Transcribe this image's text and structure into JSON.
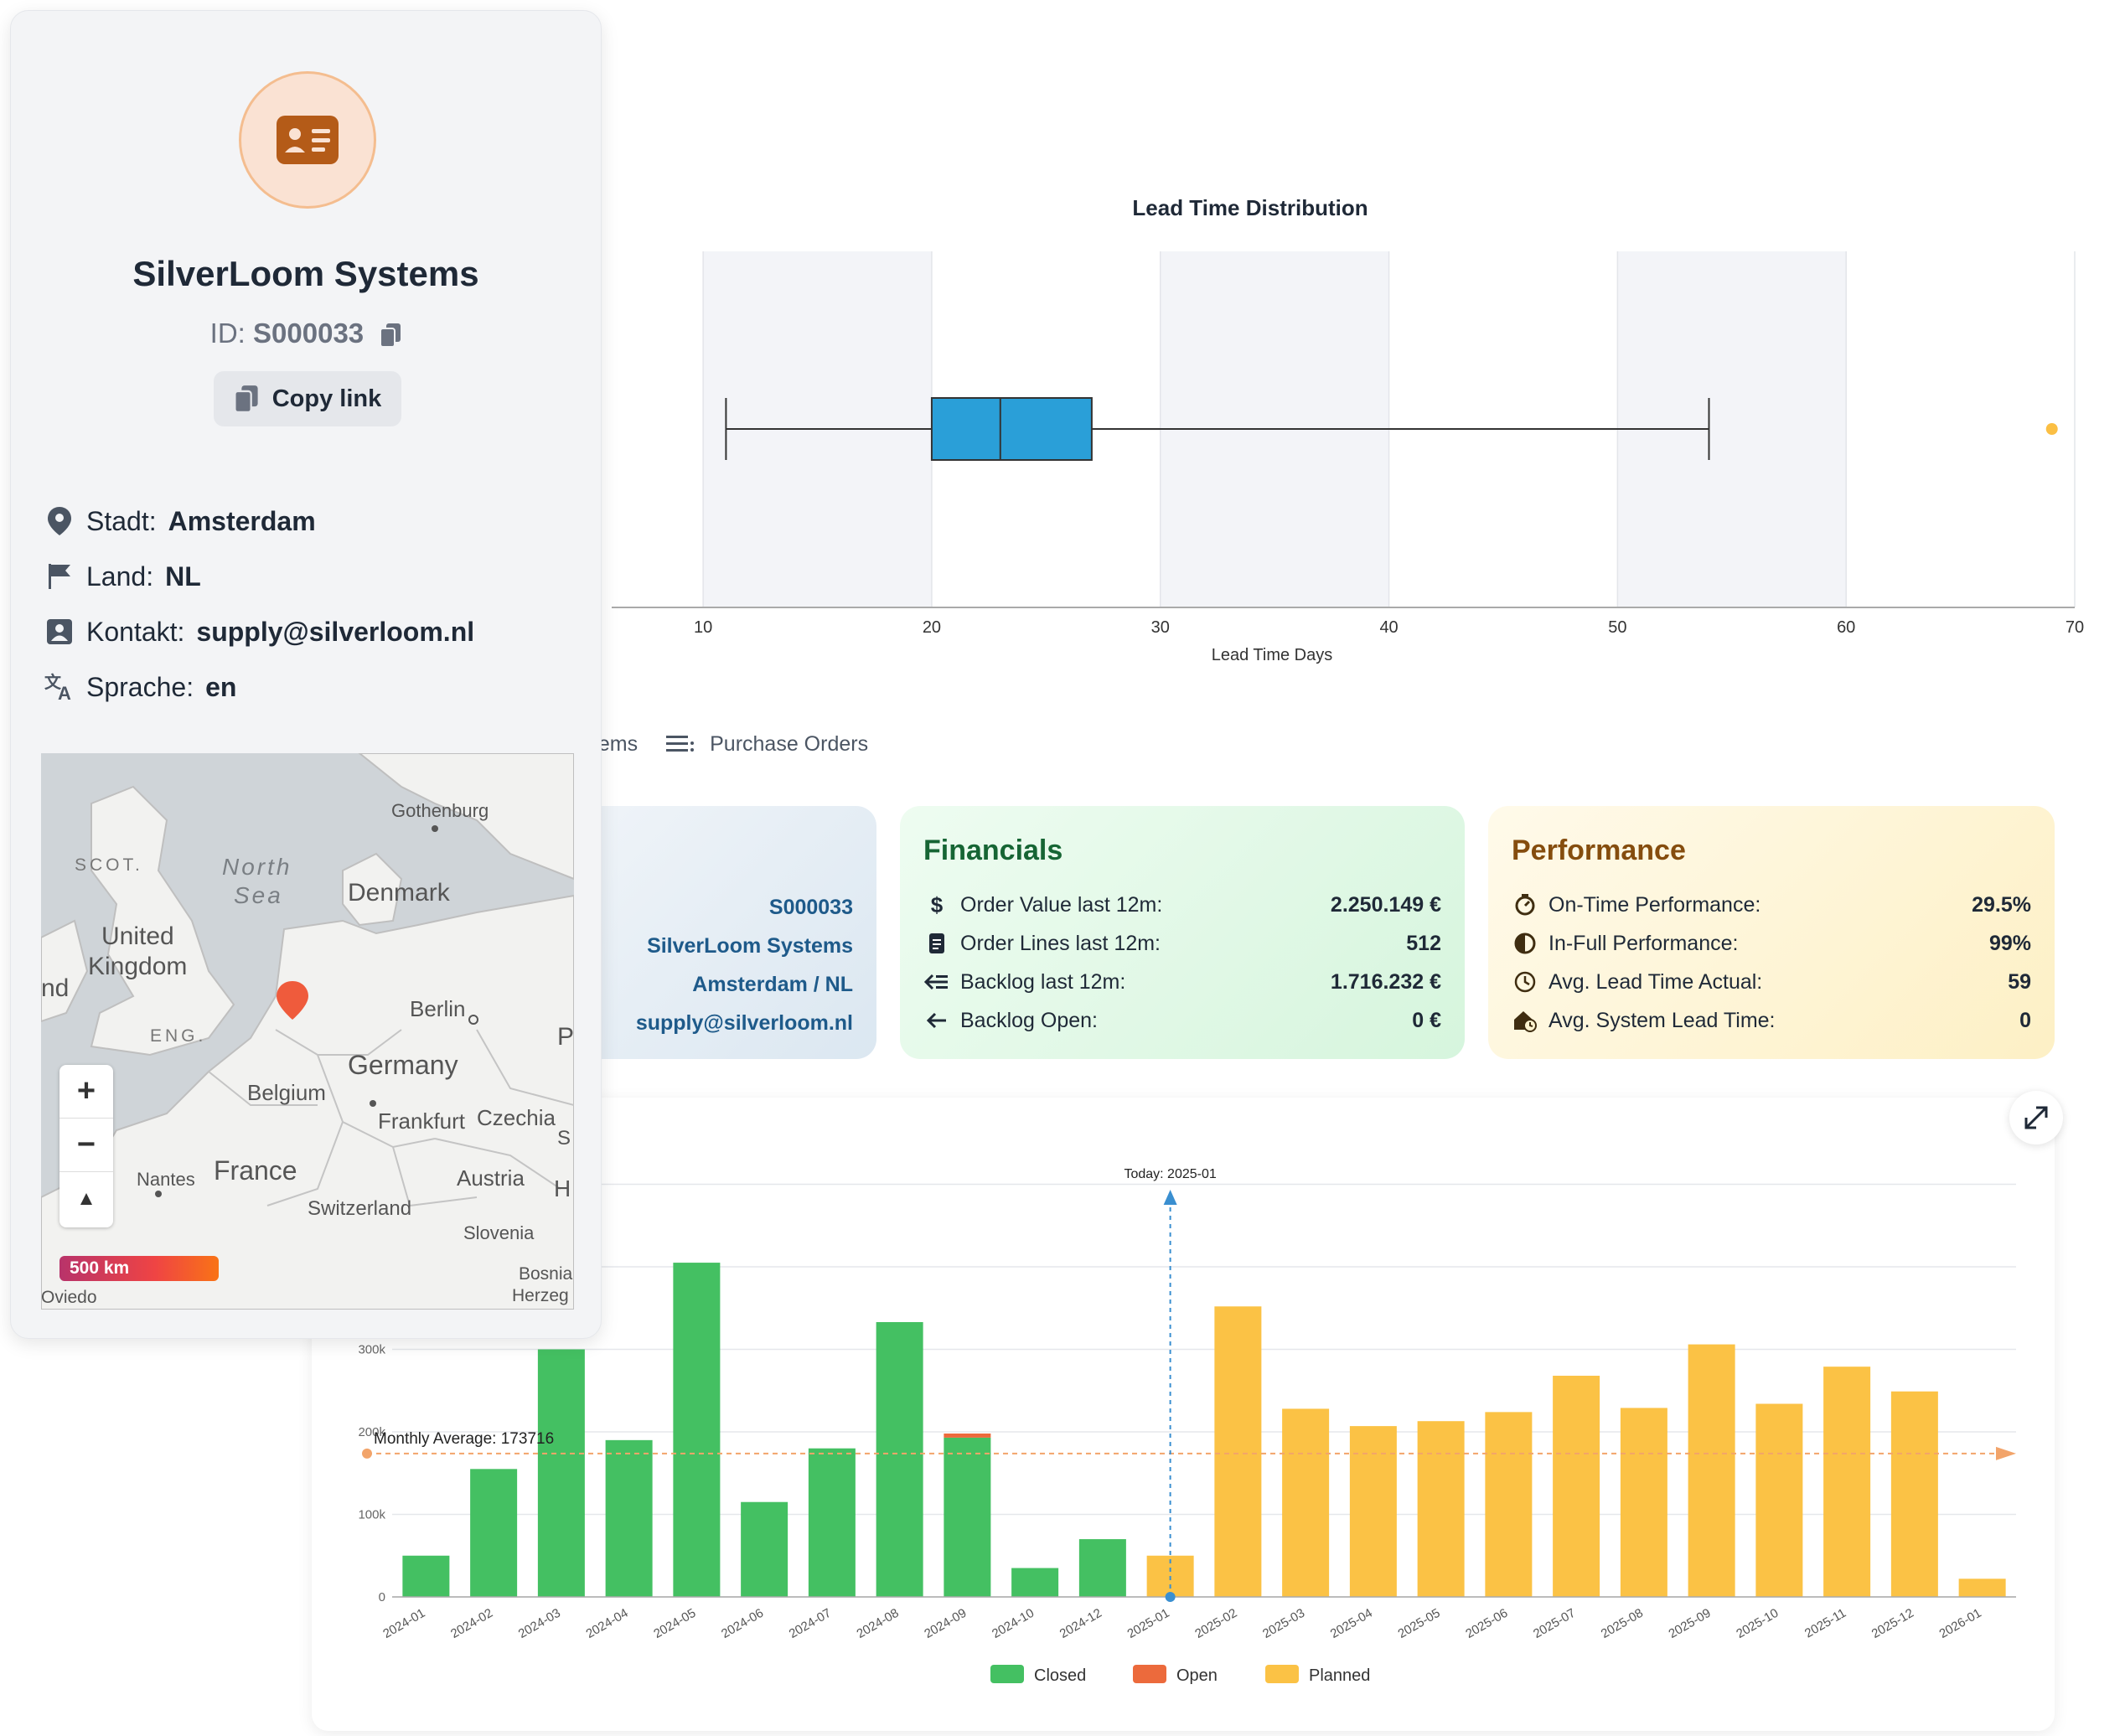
{
  "supplier": {
    "name": "SilverLoom Systems",
    "id_label": "ID:",
    "id_value": "S000033",
    "copy_link_label": "Copy link",
    "attributes": [
      {
        "label": "Stadt:",
        "value": "Amsterdam",
        "icon": "location-pin-icon"
      },
      {
        "label": "Land:",
        "value": "NL",
        "icon": "flag-icon"
      },
      {
        "label": "Kontakt:",
        "value": "supply@silverloom.nl",
        "icon": "contact-card-icon"
      },
      {
        "label": "Sprache:",
        "value": "en",
        "icon": "translate-icon"
      }
    ]
  },
  "map": {
    "labels": {
      "gothenburg": "Gothenburg",
      "scot": "SCOT.",
      "north_sea_1": "North",
      "north_sea_2": "Sea",
      "denmark": "Denmark",
      "united": "United",
      "kingdom": "Kingdom",
      "nd": "nd",
      "eng": "ENG.",
      "berlin": "Berlin",
      "p": "P",
      "germany": "Germany",
      "belgium": "Belgium",
      "frankfurt": "Frankfurt",
      "czechia": "Czechia",
      "nantes": "Nantes",
      "france": "France",
      "austria": "Austria",
      "h": "H",
      "switzerland": "Switzerland",
      "slovenia": "Slovenia",
      "bosnia": "Bosnia",
      "herzeg": "Herzeg",
      "oviedo": "Oviedo",
      "s": "S"
    },
    "zoom_in": "+",
    "zoom_out": "−",
    "compass": "▲",
    "scale": "500 km"
  },
  "lead_time_chart": {
    "title": "Lead Time Distribution",
    "xlabel": "Lead Time Days"
  },
  "tabs": [
    {
      "label": "Items",
      "icon": "list-icon"
    },
    {
      "label": "Purchase Orders",
      "icon": "list-icon"
    }
  ],
  "info_card": {
    "values": [
      "S000033",
      "SilverLoom Systems",
      "Amsterdam / NL",
      "supply@silverloom.nl"
    ]
  },
  "financials": {
    "title": "Financials",
    "rows": [
      {
        "label": "Order Value last 12m:",
        "value": "2.250.149 €",
        "icon": "dollar-icon"
      },
      {
        "label": "Order Lines last 12m:",
        "value": "512",
        "icon": "document-icon"
      },
      {
        "label": "Backlog last 12m:",
        "value": "1.716.232 €",
        "icon": "arrow-left-lines-icon"
      },
      {
        "label": "Backlog Open:",
        "value": "0 €",
        "icon": "arrow-left-icon"
      }
    ]
  },
  "performance": {
    "title": "Performance",
    "rows": [
      {
        "label": "On-Time Performance:",
        "value": "29.5%",
        "icon": "timer-icon"
      },
      {
        "label": "In-Full Performance:",
        "value": "99%",
        "icon": "half-circle-icon"
      },
      {
        "label": "Avg. Lead Time Actual:",
        "value": "59",
        "icon": "clock-icon"
      },
      {
        "label": "Avg. System Lead Time:",
        "value": "0",
        "icon": "house-clock-icon"
      }
    ]
  },
  "colors": {
    "box": "#2a9fd8",
    "outlier": "#fbbf44",
    "closed": "#44c062",
    "open": "#ec6a3c",
    "planned": "#fbc245",
    "today_line": "#3a8fd0",
    "avg_line": "#f2a46a"
  },
  "chart_data": [
    {
      "type": "box",
      "title": "Lead Time Distribution",
      "xlabel": "Lead Time Days",
      "xlim": [
        6,
        70
      ],
      "xticks": [
        10,
        20,
        30,
        40,
        50,
        60,
        70
      ],
      "whisker_low": 11,
      "q1": 20,
      "median": 23,
      "q3": 27,
      "whisker_high": 54,
      "outliers": [
        69
      ]
    },
    {
      "type": "bar",
      "stacked": true,
      "categories": [
        "2024-01",
        "2024-02",
        "2024-03",
        "2024-04",
        "2024-05",
        "2024-06",
        "2024-07",
        "2024-08",
        "2024-09",
        "2024-10",
        "2024-12",
        "2025-01",
        "2025-02",
        "2025-03",
        "2025-04",
        "2025-05",
        "2025-06",
        "2025-07",
        "2025-08",
        "2025-09",
        "2025-10",
        "2025-11",
        "2025-12",
        "2026-01"
      ],
      "series": [
        {
          "name": "Closed",
          "values": [
            50000,
            155000,
            300000,
            190000,
            405000,
            115000,
            180000,
            333000,
            193000,
            35000,
            70000,
            0,
            0,
            0,
            0,
            0,
            0,
            0,
            0,
            0,
            0,
            0,
            0,
            0
          ]
        },
        {
          "name": "Open",
          "values": [
            0,
            0,
            0,
            0,
            0,
            0,
            0,
            0,
            5000,
            0,
            0,
            0,
            0,
            0,
            0,
            0,
            0,
            0,
            0,
            0,
            0,
            0,
            0,
            0
          ]
        },
        {
          "name": "Planned",
          "values": [
            0,
            0,
            0,
            0,
            0,
            0,
            0,
            0,
            0,
            0,
            0,
            50000,
            352000,
            228000,
            207000,
            213000,
            224000,
            268000,
            229000,
            306000,
            234000,
            279000,
            249000,
            22000
          ]
        }
      ],
      "yticks": [
        0,
        100000,
        200000,
        300000
      ],
      "ytick_labels": [
        "0",
        "100k",
        "200k",
        "300k"
      ],
      "ylim": [
        0,
        500000
      ],
      "annotations": {
        "today": "Today: 2025-01",
        "monthly_average_label": "Monthly Average: 173716",
        "monthly_average": 173716
      },
      "legend": [
        "Closed",
        "Open",
        "Planned"
      ],
      "legend_position": "bottom"
    }
  ]
}
